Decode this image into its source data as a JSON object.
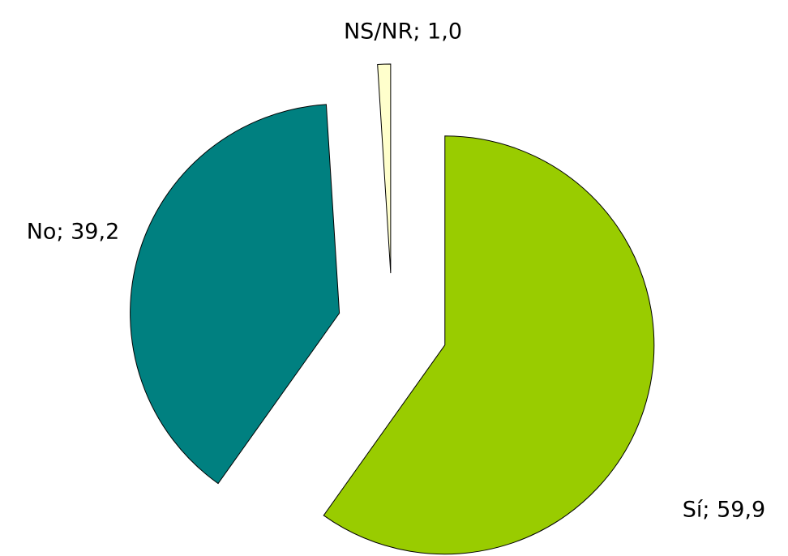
{
  "chart_data": {
    "type": "pie",
    "values": [
      59.9,
      39.2,
      1.0
    ],
    "value_labels": [
      "Sí; 59,9",
      "No; 39,2",
      "NS/NR; 1,0"
    ],
    "colors": [
      "#99cc00",
      "#008080",
      "#ffffcc"
    ]
  }
}
